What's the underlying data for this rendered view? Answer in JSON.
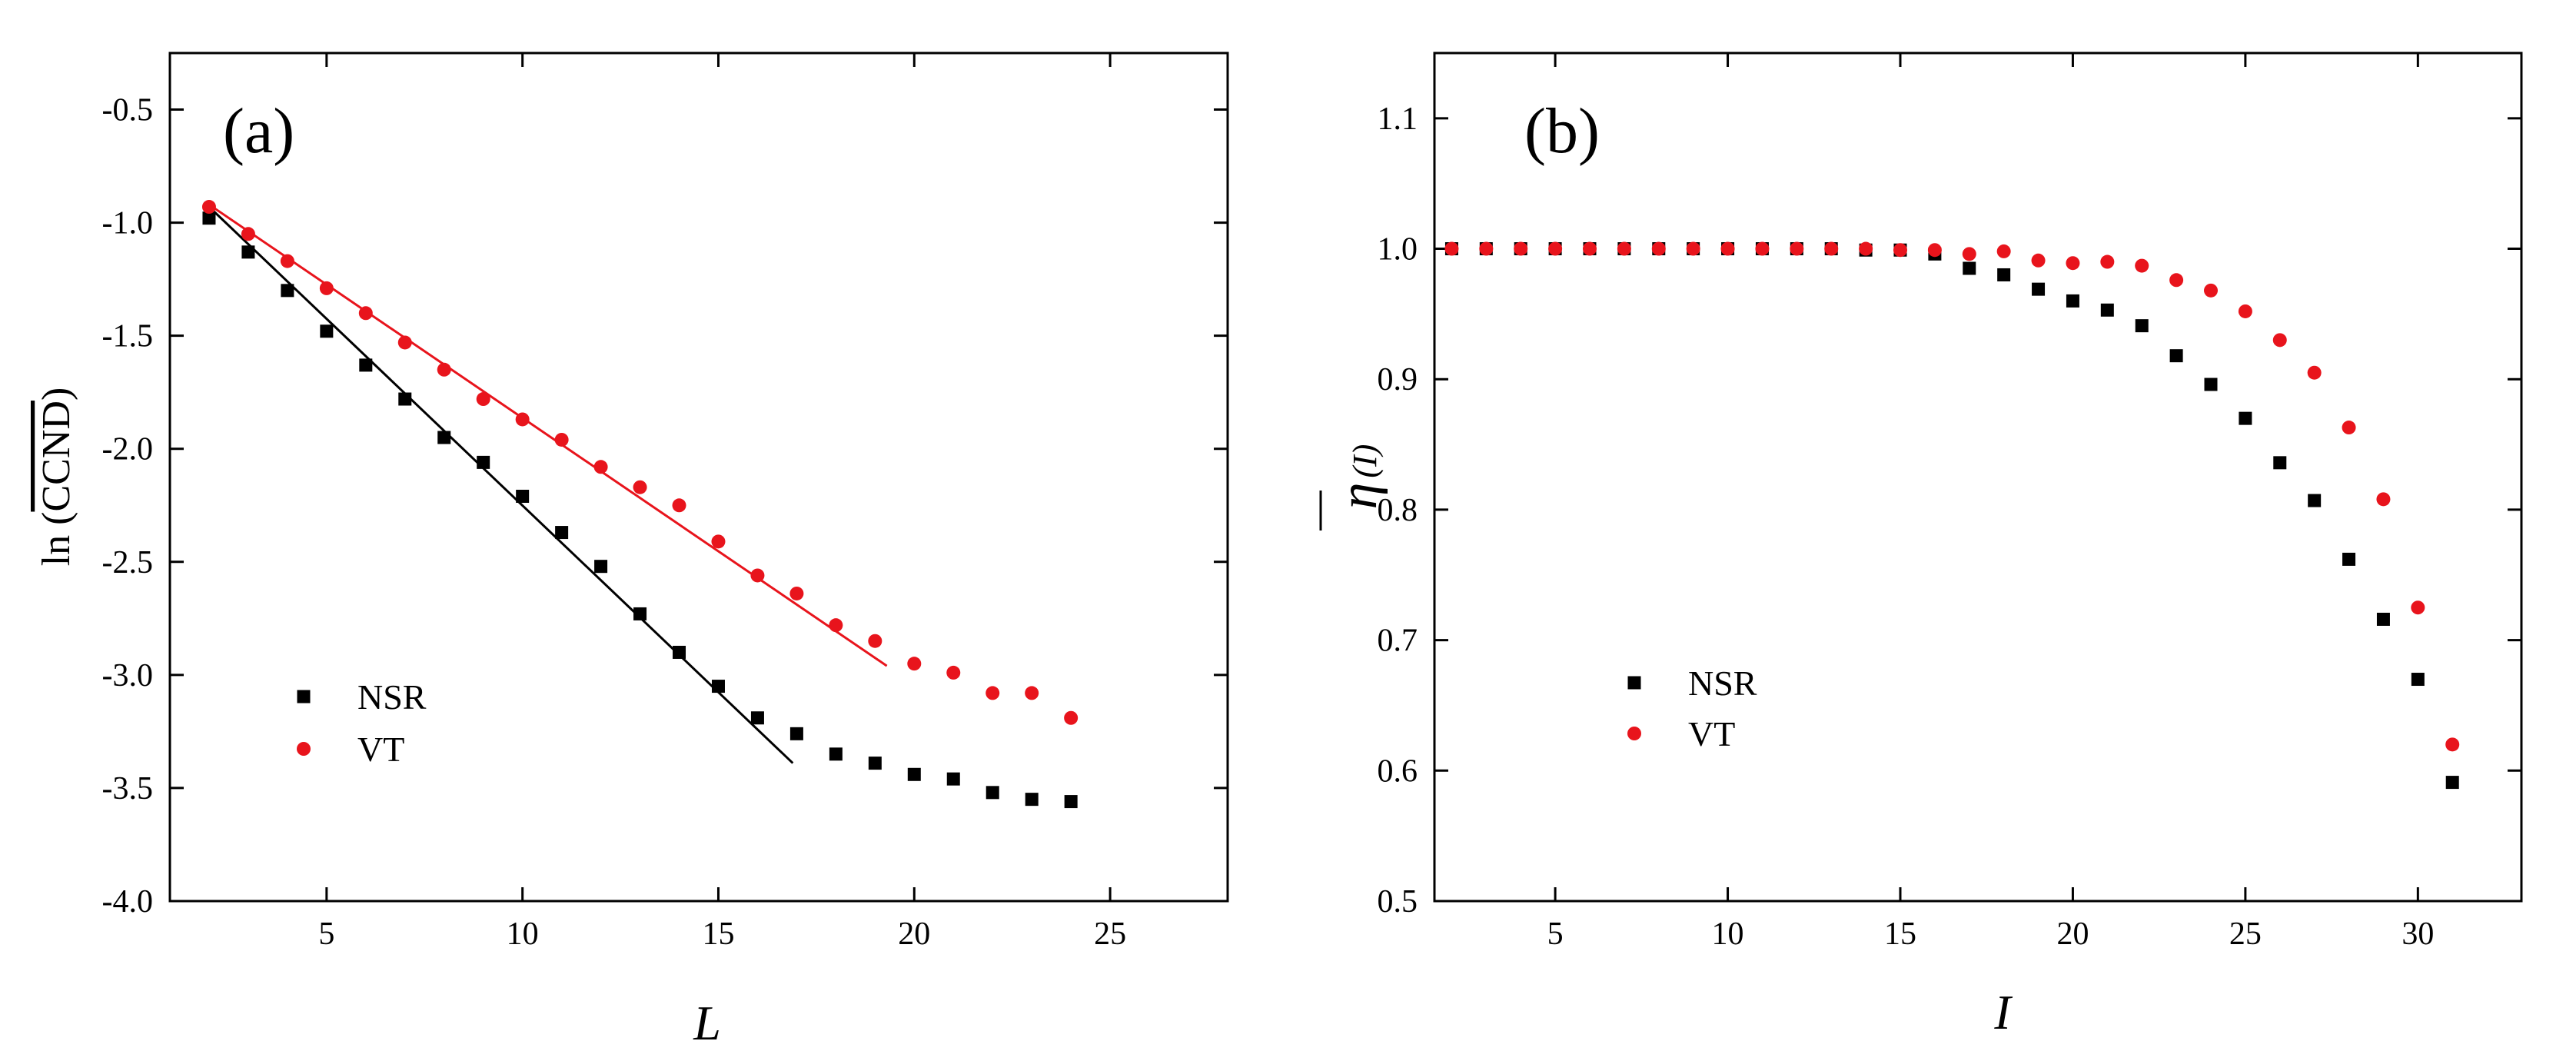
{
  "chart_data": [
    {
      "type": "scatter",
      "panel_label": "(a)",
      "xlabel": "L",
      "ylabel": "ln (CCND)",
      "ylabel_prefix": "ln (",
      "ylabel_overlined": "CCND",
      "ylabel_suffix": ")",
      "xlim": [
        1,
        28
      ],
      "ylim": [
        -4.0,
        -0.25
      ],
      "xticks": [
        5,
        10,
        15,
        20,
        25
      ],
      "yticks": [
        -4.0,
        -3.5,
        -3.0,
        -2.5,
        -2.0,
        -1.5,
        -1.0,
        -0.5
      ],
      "xtick_labels": [
        "5",
        "10",
        "15",
        "20",
        "25"
      ],
      "ytick_labels": [
        "-4.0",
        "-3.5",
        "-3.0",
        "-2.5",
        "-2.0",
        "-1.5",
        "-1.0",
        "-0.5"
      ],
      "legend_position": "lower-left",
      "series": [
        {
          "name": "NSR",
          "marker": "square",
          "color": "#000000",
          "x": [
            2,
            3,
            4,
            5,
            6,
            7,
            8,
            9,
            10,
            11,
            12,
            13,
            14,
            15,
            16,
            17,
            18,
            19,
            20,
            21,
            22,
            23,
            24
          ],
          "y": [
            -0.98,
            -1.13,
            -1.3,
            -1.48,
            -1.63,
            -1.78,
            -1.95,
            -2.06,
            -2.21,
            -2.37,
            -2.52,
            -2.73,
            -2.9,
            -3.05,
            -3.19,
            -3.26,
            -3.35,
            -3.39,
            -3.44,
            -3.46,
            -3.52,
            -3.55,
            -3.56
          ],
          "fit": {
            "x": [
              2,
              16.9
            ],
            "y": [
              -0.93,
              -3.39
            ]
          }
        },
        {
          "name": "VT",
          "marker": "circle",
          "color": "#e8141c",
          "x": [
            2,
            3,
            4,
            5,
            6,
            7,
            8,
            9,
            10,
            11,
            12,
            13,
            14,
            15,
            16,
            17,
            18,
            19,
            20,
            21,
            22,
            23,
            24
          ],
          "y": [
            -0.93,
            -1.05,
            -1.17,
            -1.29,
            -1.4,
            -1.53,
            -1.65,
            -1.78,
            -1.87,
            -1.96,
            -2.08,
            -2.17,
            -2.25,
            -2.41,
            -2.56,
            -2.64,
            -2.78,
            -2.85,
            -2.95,
            -2.99,
            -3.08,
            -3.08,
            -3.19
          ],
          "fit": {
            "x": [
              2,
              19.3
            ],
            "y": [
              -0.92,
              -2.96
            ]
          }
        }
      ]
    },
    {
      "type": "scatter",
      "panel_label": "(b)",
      "xlabel": "I",
      "ylabel": "η(I)",
      "ylabel_main": "η",
      "ylabel_sub": "(I)",
      "xlim": [
        1.5,
        33
      ],
      "ylim": [
        0.5,
        1.15
      ],
      "xticks": [
        5,
        10,
        15,
        20,
        25,
        30
      ],
      "yticks": [
        0.5,
        0.6,
        0.7,
        0.8,
        0.9,
        1.0,
        1.1
      ],
      "xtick_labels": [
        "5",
        "10",
        "15",
        "20",
        "25",
        "30"
      ],
      "ytick_labels": [
        "0.5",
        "0.6",
        "0.7",
        "0.8",
        "0.9",
        "1.0",
        "1.1"
      ],
      "legend_position": "lower-left",
      "series": [
        {
          "name": "NSR",
          "marker": "square",
          "color": "#000000",
          "x": [
            2,
            3,
            4,
            5,
            6,
            7,
            8,
            9,
            10,
            11,
            12,
            13,
            14,
            15,
            16,
            17,
            18,
            19,
            20,
            21,
            22,
            23,
            24,
            25,
            26,
            27,
            28,
            29,
            30,
            31
          ],
          "y": [
            1.0,
            1.0,
            1.0,
            1.0,
            1.0,
            1.0,
            1.0,
            1.0,
            1.0,
            1.0,
            1.0,
            1.0,
            0.999,
            0.999,
            0.996,
            0.985,
            0.98,
            0.969,
            0.96,
            0.953,
            0.941,
            0.918,
            0.896,
            0.87,
            0.836,
            0.807,
            0.762,
            0.716,
            0.67,
            0.591
          ]
        },
        {
          "name": "VT",
          "marker": "circle",
          "color": "#e8141c",
          "x": [
            2,
            3,
            4,
            5,
            6,
            7,
            8,
            9,
            10,
            11,
            12,
            13,
            14,
            15,
            16,
            17,
            18,
            19,
            20,
            21,
            22,
            23,
            24,
            25,
            26,
            27,
            28,
            29,
            30,
            31
          ],
          "y": [
            1.0,
            1.0,
            1.0,
            1.0,
            1.0,
            1.0,
            1.0,
            1.0,
            1.0,
            1.0,
            1.0,
            1.0,
            1.0,
            0.999,
            0.999,
            0.996,
            0.998,
            0.991,
            0.989,
            0.99,
            0.987,
            0.976,
            0.968,
            0.952,
            0.93,
            0.905,
            0.863,
            0.808,
            0.725,
            0.62
          ]
        }
      ]
    }
  ]
}
